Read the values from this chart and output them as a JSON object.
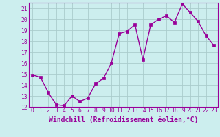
{
  "x": [
    0,
    1,
    2,
    3,
    4,
    5,
    6,
    7,
    8,
    9,
    10,
    11,
    12,
    13,
    14,
    15,
    16,
    17,
    18,
    19,
    20,
    21,
    22,
    23
  ],
  "y": [
    14.9,
    14.7,
    13.3,
    12.2,
    12.1,
    13.0,
    12.5,
    12.8,
    14.1,
    14.6,
    16.0,
    18.7,
    18.9,
    19.5,
    16.3,
    19.5,
    20.0,
    20.3,
    19.7,
    21.4,
    20.6,
    19.8,
    18.5,
    17.6
  ],
  "line_color": "#990099",
  "marker_color": "#990099",
  "bg_color": "#cceeee",
  "grid_color": "#aacccc",
  "xlabel": "Windchill (Refroidissement éolien,°C)",
  "ylim": [
    12,
    21.5
  ],
  "xlim": [
    -0.5,
    23.5
  ],
  "yticks": [
    12,
    13,
    14,
    15,
    16,
    17,
    18,
    19,
    20,
    21
  ],
  "xticks": [
    0,
    1,
    2,
    3,
    4,
    5,
    6,
    7,
    8,
    9,
    10,
    11,
    12,
    13,
    14,
    15,
    16,
    17,
    18,
    19,
    20,
    21,
    22,
    23
  ],
  "tick_label_fontsize": 5.8,
  "xlabel_fontsize": 7.0,
  "line_width": 1.0,
  "marker_size": 2.5
}
